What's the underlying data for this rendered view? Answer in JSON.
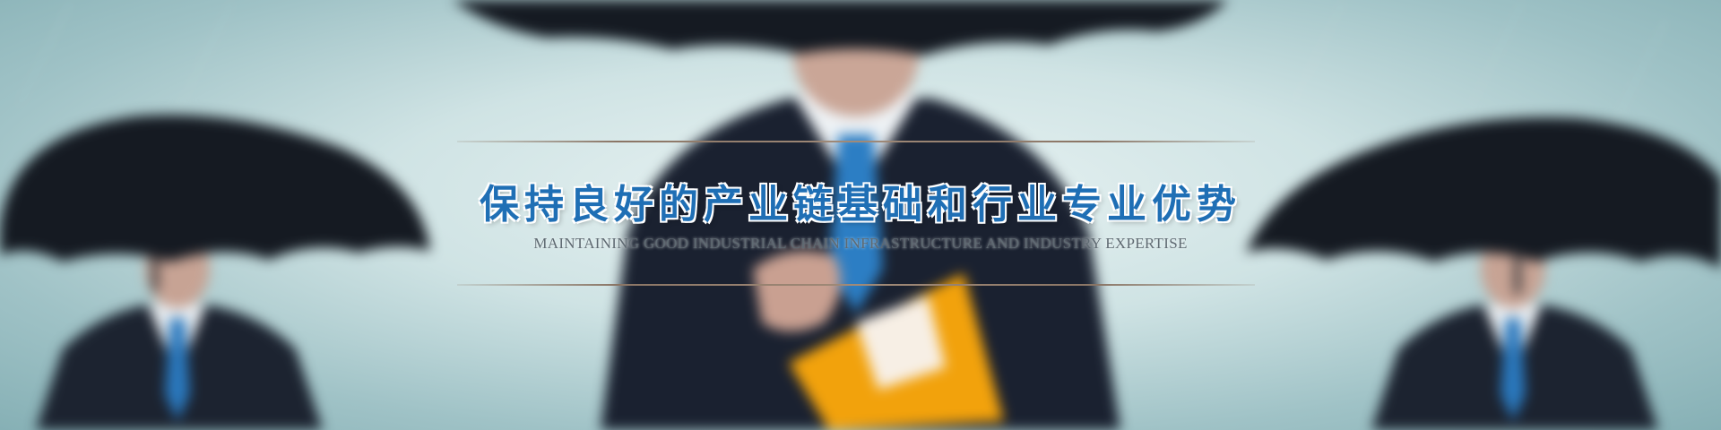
{
  "banner": {
    "title_cn": "保持良好的产业链基础和行业专业优势",
    "title_en": "MAINTAINING GOOD INDUSTRIAL CHAIN INFRASTRUCTURE AND INDUSTRY EXPERTISE"
  },
  "colors": {
    "background": "#cfe3e4",
    "title_cn": "#1f6fb5",
    "title_en": "#5f6a72",
    "rule_lines": "#a08a78",
    "folder": "#f2a20c",
    "suit": "#1b2230",
    "tie": "#2c7ec4"
  }
}
